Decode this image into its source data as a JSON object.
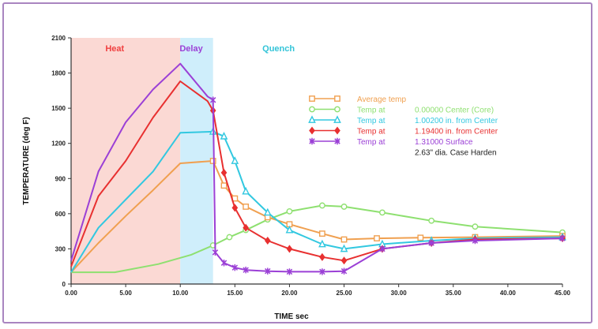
{
  "chart_data": {
    "type": "line",
    "xlabel": "TIME sec",
    "ylabel": "TEMPERATURE (deg F)",
    "xlim": [
      0,
      45
    ],
    "ylim": [
      0,
      2100
    ],
    "xticks": [
      "0.00",
      "5.00",
      "10.00",
      "15.00",
      "20.00",
      "25.00",
      "30.00",
      "35.00",
      "40.00",
      "45.00"
    ],
    "yticks": [
      "0",
      "300",
      "600",
      "900",
      "1200",
      "1500",
      "1800",
      "2100"
    ],
    "phases": [
      {
        "label": "Heat",
        "start": 0,
        "end": 10,
        "color": "#f04040",
        "fill": "#fbd9d4"
      },
      {
        "label": "Delay",
        "start": 10,
        "end": 13,
        "color": "#9b40d6",
        "fill": null
      },
      {
        "label": "Quench",
        "start": 13,
        "end": 13,
        "color": "#33c4d8",
        "fill": "#cfeefb"
      }
    ],
    "legend_position": "right",
    "legend_note": "2.63\" dia. Case Harden",
    "series": [
      {
        "name": "Average temp",
        "prefix": "",
        "detail": "Average temp",
        "color": "#f0a050",
        "marker": "square",
        "x": [
          0,
          2.5,
          5,
          7.5,
          10,
          13,
          14,
          15,
          16,
          18,
          20,
          23,
          25,
          28,
          32,
          37,
          45
        ],
        "y": [
          100,
          350,
          580,
          800,
          1030,
          1050,
          840,
          730,
          660,
          570,
          510,
          430,
          380,
          390,
          395,
          400,
          410
        ]
      },
      {
        "name": "0.00000 Center (Core)",
        "prefix": "Temp at",
        "detail": "0.00000 Center (Core)",
        "color": "#8ee070",
        "marker": "circle",
        "x": [
          0,
          4,
          8,
          11,
          13,
          14.5,
          16,
          18,
          20,
          23,
          25,
          28.5,
          33,
          37,
          45
        ],
        "y": [
          100,
          100,
          170,
          250,
          330,
          400,
          460,
          550,
          620,
          670,
          660,
          610,
          540,
          490,
          440
        ]
      },
      {
        "name": "1.00200 in. from Center",
        "prefix": "Temp at",
        "detail": "1.00200 in. from Center",
        "color": "#32c8e0",
        "marker": "triangle",
        "x": [
          0,
          2.5,
          5,
          7.5,
          10,
          13,
          14,
          15,
          16,
          18,
          20,
          23,
          25,
          28.5,
          33,
          37,
          45
        ],
        "y": [
          100,
          480,
          720,
          960,
          1290,
          1300,
          1260,
          1050,
          790,
          610,
          460,
          340,
          300,
          340,
          370,
          390,
          400
        ]
      },
      {
        "name": "1.19400 in. from Center",
        "prefix": "Temp at",
        "detail": "1.19400 in. from Center",
        "color": "#e83030",
        "marker": "diamond",
        "x": [
          0,
          2.5,
          5,
          7.5,
          10,
          12.5,
          13,
          14,
          15,
          16,
          18,
          20,
          23,
          25,
          28.5,
          33,
          37,
          45
        ],
        "y": [
          150,
          750,
          1050,
          1420,
          1730,
          1560,
          1480,
          950,
          650,
          480,
          370,
          300,
          230,
          200,
          300,
          350,
          380,
          390
        ]
      },
      {
        "name": "1.31000 Surface",
        "prefix": "Temp at",
        "detail": "1.31000 Surface",
        "color": "#9b40d6",
        "marker": "cross",
        "x": [
          0,
          2.5,
          5,
          7.5,
          10,
          12.5,
          13,
          13.2,
          14,
          15,
          16,
          18,
          20,
          23,
          25,
          28.5,
          33,
          37,
          45
        ],
        "y": [
          200,
          960,
          1380,
          1660,
          1880,
          1600,
          1570,
          270,
          180,
          140,
          120,
          110,
          105,
          105,
          110,
          300,
          350,
          370,
          390
        ]
      }
    ]
  }
}
